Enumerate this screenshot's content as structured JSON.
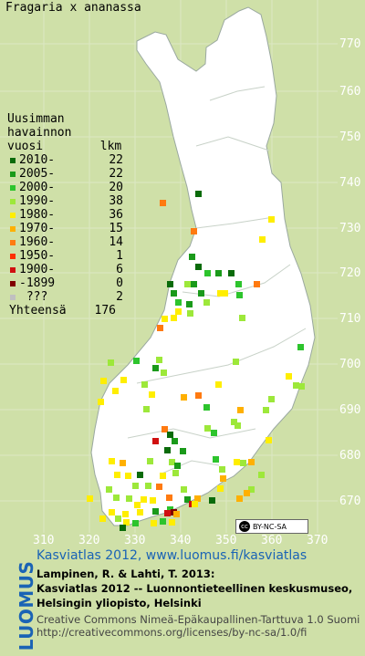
{
  "title": "Fragaria x ananassa",
  "legend": {
    "header": [
      "Uusimman",
      "havainnon",
      "vuosi        lkm"
    ],
    "rows": [
      {
        "label": "2010-",
        "count": "22",
        "color": "#0a6b0a"
      },
      {
        "label": "2005-",
        "count": "22",
        "color": "#1a9a1a"
      },
      {
        "label": "2000-",
        "count": "20",
        "color": "#2dc42d"
      },
      {
        "label": "1990-",
        "count": "38",
        "color": "#9de83a"
      },
      {
        "label": "1980-",
        "count": "36",
        "color": "#ffee00"
      },
      {
        "label": "1970-",
        "count": "15",
        "color": "#ffb000"
      },
      {
        "label": "1960-",
        "count": "14",
        "color": "#ff7a10"
      },
      {
        "label": "1950-",
        "count": "1",
        "color": "#ff3000"
      },
      {
        "label": "1900-",
        "count": "6",
        "color": "#d01010"
      },
      {
        "label": "-1899",
        "count": "0",
        "color": "#800000"
      },
      {
        "label": " ???",
        "count": "2",
        "color": "#c0c0c0"
      }
    ],
    "total_label": "Yhteensä",
    "total_count": "176"
  },
  "axes": {
    "y_ticks": [
      "770",
      "760",
      "750",
      "740",
      "730",
      "720",
      "710",
      "700",
      "690",
      "680",
      "670"
    ],
    "x_ticks": [
      "310",
      "320",
      "330",
      "340",
      "350",
      "360",
      "370"
    ]
  },
  "license_badge": "BY-NC-SA",
  "footer": {
    "logo": "LUOMUS",
    "line1": "Kasviatlas 2012, www.luomus.fi/kasviatlas",
    "line2": "Lampinen, R. & Lahti, T. 2013:",
    "line3": "Kasviatlas 2012 -- Luonnontieteellinen keskusmuseo,",
    "line4": "Helsingin yliopisto, Helsinki",
    "line5": "Creative Commons Nimeä-Epäkaupallinen-Tarttuva 1.0 Suomi",
    "line6": "http://creativecommons.org/licenses/by-nc-sa/1.0/fi"
  },
  "colors": {
    "land": "#ffffff",
    "background": "#cfe0a8",
    "grid": "#d8e6bd",
    "border": "#9aa8a0",
    "link": "#1a63b5"
  }
}
